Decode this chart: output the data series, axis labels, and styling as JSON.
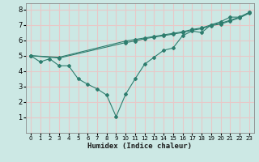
{
  "xlabel": "Humidex (Indice chaleur)",
  "ylabel": "",
  "bg_color": "#cce8e4",
  "grid_color": "#e8c8c8",
  "line_color": "#2e7d6e",
  "marker_color": "#2e7d6e",
  "xlim": [
    -0.5,
    23.5
  ],
  "ylim": [
    0,
    8.4
  ],
  "xticks": [
    0,
    1,
    2,
    3,
    4,
    5,
    6,
    7,
    8,
    9,
    10,
    11,
    12,
    13,
    14,
    15,
    16,
    17,
    18,
    19,
    20,
    21,
    22,
    23
  ],
  "yticks": [
    1,
    2,
    3,
    4,
    5,
    6,
    7,
    8
  ],
  "line1_x": [
    0,
    1,
    2,
    3,
    4,
    5,
    6,
    7,
    8,
    9,
    10,
    11,
    12,
    13,
    14,
    15,
    16,
    17,
    18,
    19,
    20,
    21,
    22,
    23
  ],
  "line1_y": [
    5.0,
    4.6,
    4.8,
    4.35,
    4.35,
    3.5,
    3.15,
    2.85,
    2.45,
    1.05,
    2.5,
    3.5,
    4.45,
    4.9,
    5.35,
    5.5,
    6.3,
    6.6,
    6.5,
    7.0,
    7.2,
    7.5,
    7.5,
    7.8
  ],
  "line2_x": [
    0,
    3,
    10,
    11,
    12,
    13,
    14,
    15,
    16,
    17,
    18,
    19,
    20,
    21,
    22,
    23
  ],
  "line2_y": [
    5.0,
    4.9,
    5.95,
    6.05,
    6.15,
    6.25,
    6.35,
    6.45,
    6.55,
    6.7,
    6.8,
    7.0,
    7.1,
    7.3,
    7.5,
    7.8
  ],
  "line3_x": [
    0,
    3,
    10,
    11,
    12,
    13,
    14,
    15,
    16,
    17,
    18,
    19,
    20,
    21,
    22,
    23
  ],
  "line3_y": [
    5.0,
    4.85,
    5.85,
    5.95,
    6.1,
    6.2,
    6.3,
    6.4,
    6.5,
    6.65,
    6.75,
    6.95,
    7.05,
    7.25,
    7.45,
    7.75
  ]
}
